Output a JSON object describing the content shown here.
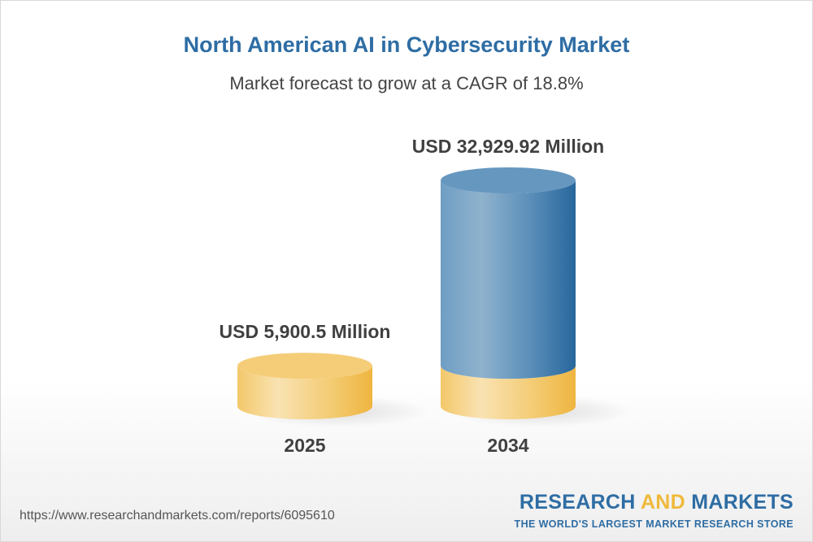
{
  "chart_data": {
    "type": "bar",
    "style": "3d-cylinder",
    "title": "North American AI in Cybersecurity Market",
    "subtitle": "Market forecast to grow at a CAGR of 18.8%",
    "categories": [
      "2025",
      "2034"
    ],
    "values": [
      5900.5,
      32929.92
    ],
    "data_labels": [
      "USD 5,900.5 Million",
      "USD 32,929.92 Million"
    ],
    "unit": "USD Million",
    "grid": false,
    "colors": {
      "base": "#f2c157",
      "growth": "#2e6da4",
      "title": "#2e6da4"
    }
  },
  "footer": {
    "url": "https://www.researchandmarkets.com/reports/6095610",
    "logo_part1": "RESEARCH",
    "logo_part2": "AND",
    "logo_part3": "MARKETS",
    "tagline": "THE WORLD'S LARGEST MARKET RESEARCH STORE"
  }
}
